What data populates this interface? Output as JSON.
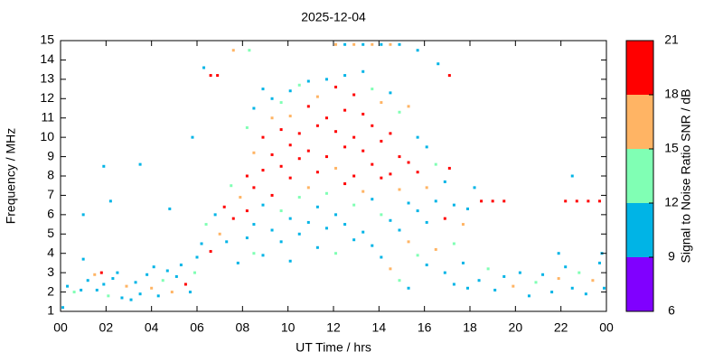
{
  "chart_data": {
    "type": "scatter",
    "title": "2025-12-04",
    "xlabel": "UT Time / hrs",
    "ylabel": "Frequency / MHz",
    "colorbar_label": "Signal to Noise Ratio SNR / dB",
    "xlim": [
      0,
      24
    ],
    "xticks": [
      {
        "value": 0,
        "label": "00"
      },
      {
        "value": 2,
        "label": "02"
      },
      {
        "value": 4,
        "label": "04"
      },
      {
        "value": 6,
        "label": "06"
      },
      {
        "value": 8,
        "label": "08"
      },
      10,
      12,
      14,
      16,
      18,
      20,
      22,
      {
        "value": 24,
        "label": "00"
      }
    ],
    "ylim": [
      1,
      15
    ],
    "yticks": [
      1,
      2,
      3,
      4,
      5,
      6,
      7,
      8,
      9,
      10,
      11,
      12,
      13,
      14,
      15
    ],
    "clim": [
      6,
      21
    ],
    "cticks": [
      6,
      9,
      12,
      15,
      18,
      21
    ],
    "colors": [
      "#8000ff",
      "#00b4e6",
      "#80ffb4",
      "#ffb464",
      "#ff0000"
    ],
    "points": [
      [
        0.1,
        1.2,
        10
      ],
      [
        0.3,
        2.3,
        10
      ],
      [
        0.6,
        2.0,
        13
      ],
      [
        0.9,
        2.1,
        10
      ],
      [
        1.0,
        3.7,
        10
      ],
      [
        1.2,
        2.6,
        10
      ],
      [
        1.5,
        2.9,
        16
      ],
      [
        1.6,
        2.1,
        10
      ],
      [
        1.8,
        3.0,
        19
      ],
      [
        1.9,
        2.4,
        10
      ],
      [
        2.1,
        1.8,
        13
      ],
      [
        2.3,
        2.7,
        10
      ],
      [
        2.5,
        3.0,
        10
      ],
      [
        2.7,
        1.7,
        10
      ],
      [
        2.9,
        2.3,
        16
      ],
      [
        3.1,
        1.6,
        10
      ],
      [
        3.3,
        2.5,
        10
      ],
      [
        3.5,
        1.9,
        10
      ],
      [
        3.8,
        2.9,
        10
      ],
      [
        4.0,
        2.2,
        16
      ],
      [
        4.1,
        3.3,
        10
      ],
      [
        4.3,
        1.8,
        10
      ],
      [
        4.5,
        2.6,
        13
      ],
      [
        4.7,
        3.1,
        10
      ],
      [
        4.9,
        2.0,
        16
      ],
      [
        5.1,
        2.8,
        10
      ],
      [
        5.3,
        3.4,
        10
      ],
      [
        5.5,
        2.4,
        19
      ],
      [
        5.7,
        2.0,
        10
      ],
      [
        5.9,
        3.0,
        13
      ],
      [
        6.0,
        3.8,
        10
      ],
      [
        1.0,
        6.0,
        10
      ],
      [
        1.9,
        8.5,
        10
      ],
      [
        3.5,
        8.6,
        10
      ],
      [
        2.2,
        6.7,
        10
      ],
      [
        4.8,
        6.3,
        10
      ],
      [
        5.8,
        10.0,
        10
      ],
      [
        6.3,
        13.6,
        10
      ],
      [
        6.6,
        13.2,
        19
      ],
      [
        6.9,
        13.2,
        19
      ],
      [
        6.2,
        4.5,
        10
      ],
      [
        6.4,
        5.5,
        13
      ],
      [
        6.6,
        4.1,
        19
      ],
      [
        6.8,
        6.0,
        10
      ],
      [
        7.0,
        5.0,
        16
      ],
      [
        7.2,
        6.4,
        19
      ],
      [
        7.3,
        4.6,
        10
      ],
      [
        7.5,
        7.5,
        13
      ],
      [
        7.6,
        5.8,
        19
      ],
      [
        7.8,
        3.5,
        10
      ],
      [
        7.9,
        6.9,
        16
      ],
      [
        7.6,
        14.5,
        16
      ],
      [
        8.3,
        14.5,
        13
      ],
      [
        8.2,
        4.8,
        10
      ],
      [
        8.2,
        6.2,
        19
      ],
      [
        8.2,
        8.0,
        19
      ],
      [
        8.2,
        10.5,
        13
      ],
      [
        8.5,
        5.5,
        10
      ],
      [
        8.5,
        7.4,
        19
      ],
      [
        8.5,
        9.2,
        16
      ],
      [
        8.5,
        11.5,
        10
      ],
      [
        8.5,
        4.0,
        13
      ],
      [
        8.9,
        12.5,
        10
      ],
      [
        8.9,
        10.0,
        19
      ],
      [
        8.9,
        8.3,
        19
      ],
      [
        8.9,
        6.5,
        10
      ],
      [
        8.9,
        3.9,
        10
      ],
      [
        9.3,
        11.0,
        16
      ],
      [
        9.3,
        9.1,
        19
      ],
      [
        9.3,
        7.0,
        19
      ],
      [
        9.3,
        5.2,
        10
      ],
      [
        9.3,
        12.0,
        10
      ],
      [
        9.7,
        10.4,
        19
      ],
      [
        9.7,
        8.5,
        19
      ],
      [
        9.7,
        6.2,
        13
      ],
      [
        9.7,
        4.6,
        10
      ],
      [
        9.7,
        11.8,
        13
      ],
      [
        10.1,
        12.4,
        10
      ],
      [
        10.1,
        9.6,
        19
      ],
      [
        10.1,
        7.9,
        19
      ],
      [
        10.1,
        5.8,
        10
      ],
      [
        10.1,
        3.6,
        10
      ],
      [
        10.1,
        11.1,
        16
      ],
      [
        10.5,
        12.7,
        13
      ],
      [
        10.5,
        10.2,
        19
      ],
      [
        10.5,
        8.9,
        19
      ],
      [
        10.5,
        6.9,
        13
      ],
      [
        10.5,
        5.0,
        10
      ],
      [
        10.9,
        11.6,
        19
      ],
      [
        10.9,
        9.3,
        19
      ],
      [
        10.9,
        7.4,
        16
      ],
      [
        10.9,
        5.6,
        10
      ],
      [
        10.9,
        12.9,
        10
      ],
      [
        11.3,
        12.1,
        16
      ],
      [
        11.3,
        10.6,
        19
      ],
      [
        11.3,
        8.2,
        19
      ],
      [
        11.3,
        6.4,
        10
      ],
      [
        11.3,
        4.3,
        10
      ],
      [
        11.7,
        13.0,
        10
      ],
      [
        11.7,
        11.0,
        19
      ],
      [
        11.7,
        9.0,
        19
      ],
      [
        11.7,
        7.1,
        13
      ],
      [
        11.7,
        5.3,
        10
      ],
      [
        12.1,
        12.6,
        19
      ],
      [
        12.1,
        10.3,
        19
      ],
      [
        12.1,
        8.4,
        16
      ],
      [
        12.1,
        6.0,
        10
      ],
      [
        12.1,
        4.0,
        13
      ],
      [
        12.1,
        14.8,
        16
      ],
      [
        12.5,
        13.2,
        10
      ],
      [
        12.5,
        11.4,
        19
      ],
      [
        12.5,
        9.5,
        19
      ],
      [
        12.5,
        7.6,
        19
      ],
      [
        12.5,
        5.5,
        10
      ],
      [
        12.5,
        14.8,
        10
      ],
      [
        12.9,
        12.2,
        19
      ],
      [
        12.9,
        10.0,
        19
      ],
      [
        12.9,
        8.0,
        19
      ],
      [
        12.9,
        6.5,
        13
      ],
      [
        12.9,
        4.7,
        10
      ],
      [
        12.9,
        14.8,
        16
      ],
      [
        13.3,
        13.4,
        10
      ],
      [
        13.3,
        11.2,
        19
      ],
      [
        13.3,
        9.3,
        19
      ],
      [
        13.3,
        7.2,
        16
      ],
      [
        13.3,
        5.1,
        10
      ],
      [
        13.3,
        14.8,
        10
      ],
      [
        13.7,
        12.5,
        13
      ],
      [
        13.7,
        10.6,
        19
      ],
      [
        13.7,
        8.6,
        19
      ],
      [
        13.7,
        6.8,
        10
      ],
      [
        13.7,
        4.4,
        10
      ],
      [
        13.7,
        14.8,
        16
      ],
      [
        14.1,
        11.8,
        16
      ],
      [
        14.1,
        9.8,
        19
      ],
      [
        14.1,
        7.9,
        19
      ],
      [
        14.1,
        6.0,
        13
      ],
      [
        14.1,
        3.8,
        10
      ],
      [
        14.1,
        14.8,
        10
      ],
      [
        14.5,
        12.3,
        10
      ],
      [
        14.5,
        10.2,
        19
      ],
      [
        14.5,
        8.1,
        19
      ],
      [
        14.5,
        5.7,
        10
      ],
      [
        14.5,
        3.2,
        16
      ],
      [
        14.5,
        14.8,
        16
      ],
      [
        14.9,
        11.3,
        13
      ],
      [
        14.9,
        9.0,
        19
      ],
      [
        14.9,
        7.3,
        16
      ],
      [
        14.9,
        5.2,
        10
      ],
      [
        14.9,
        2.6,
        13
      ],
      [
        14.9,
        14.8,
        10
      ],
      [
        15.3,
        11.6,
        16
      ],
      [
        15.3,
        8.7,
        19
      ],
      [
        15.3,
        6.6,
        10
      ],
      [
        15.3,
        4.6,
        16
      ],
      [
        15.3,
        2.2,
        10
      ],
      [
        15.7,
        10.0,
        10
      ],
      [
        15.7,
        8.2,
        19
      ],
      [
        15.7,
        6.2,
        10
      ],
      [
        15.7,
        3.9,
        13
      ],
      [
        15.7,
        14.5,
        10
      ],
      [
        16.1,
        9.5,
        10
      ],
      [
        16.1,
        7.4,
        16
      ],
      [
        16.1,
        5.6,
        10
      ],
      [
        16.1,
        3.4,
        10
      ],
      [
        16.5,
        8.6,
        13
      ],
      [
        16.5,
        6.7,
        10
      ],
      [
        16.5,
        4.2,
        16
      ],
      [
        16.9,
        7.7,
        10
      ],
      [
        16.9,
        5.8,
        19
      ],
      [
        16.9,
        3.0,
        10
      ],
      [
        17.1,
        8.4,
        19
      ],
      [
        17.1,
        13.2,
        19
      ],
      [
        16.6,
        13.8,
        10
      ],
      [
        17.3,
        6.5,
        10
      ],
      [
        17.3,
        4.5,
        13
      ],
      [
        17.3,
        2.4,
        10
      ],
      [
        17.7,
        5.5,
        16
      ],
      [
        17.7,
        3.5,
        10
      ],
      [
        17.9,
        6.3,
        10
      ],
      [
        17.9,
        2.2,
        10
      ],
      [
        18.2,
        7.4,
        10
      ],
      [
        18.5,
        6.7,
        19
      ],
      [
        19.0,
        6.7,
        19
      ],
      [
        19.5,
        6.7,
        19
      ],
      [
        18.4,
        2.6,
        10
      ],
      [
        18.8,
        3.2,
        13
      ],
      [
        19.1,
        2.1,
        10
      ],
      [
        19.5,
        2.8,
        10
      ],
      [
        19.9,
        2.3,
        16
      ],
      [
        20.2,
        3.0,
        10
      ],
      [
        20.6,
        1.8,
        10
      ],
      [
        20.9,
        2.5,
        13
      ],
      [
        21.2,
        2.9,
        10
      ],
      [
        21.6,
        2.0,
        10
      ],
      [
        21.9,
        2.7,
        16
      ],
      [
        22.2,
        3.3,
        10
      ],
      [
        22.5,
        2.2,
        10
      ],
      [
        22.8,
        3.0,
        13
      ],
      [
        23.1,
        1.9,
        10
      ],
      [
        23.4,
        2.6,
        16
      ],
      [
        23.7,
        3.5,
        10
      ],
      [
        23.9,
        2.2,
        10
      ],
      [
        22.2,
        6.7,
        19
      ],
      [
        22.7,
        6.7,
        19
      ],
      [
        23.2,
        6.7,
        19
      ],
      [
        23.7,
        6.7,
        19
      ],
      [
        22.5,
        8.0,
        10
      ],
      [
        23.8,
        4.0,
        10
      ],
      [
        21.9,
        4.0,
        10
      ]
    ]
  }
}
